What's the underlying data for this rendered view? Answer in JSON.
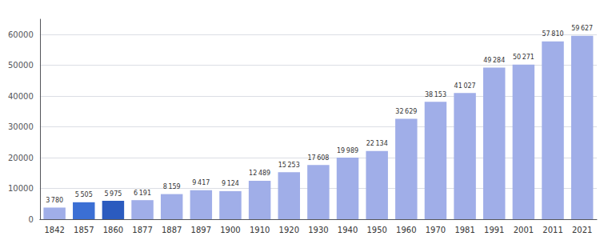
{
  "chart_data": {
    "type": "bar",
    "categories": [
      "1842",
      "1857",
      "1860",
      "1877",
      "1887",
      "1897",
      "1900",
      "1910",
      "1920",
      "1930",
      "1940",
      "1950",
      "1960",
      "1970",
      "1981",
      "1991",
      "2001",
      "2011",
      "2021"
    ],
    "values": [
      3780,
      5505,
      5975,
      6191,
      8159,
      9417,
      9124,
      12489,
      15253,
      17608,
      19989,
      22134,
      32629,
      38153,
      41027,
      49284,
      50271,
      57810,
      59627
    ],
    "value_labels": [
      "3 780",
      "5 505",
      "5 975",
      "6 191",
      "8 159",
      "9 417",
      "9 124",
      "12 489",
      "15 253",
      "17 608",
      "19 989",
      "22 134",
      "32 629",
      "38 153",
      "41 027",
      "49 284",
      "50 271",
      "57 810",
      "59 627"
    ],
    "colors": [
      "#a0aee8",
      "#3b6fd4",
      "#2b5bbf",
      "#a0aee8",
      "#a0aee8",
      "#a0aee8",
      "#a0aee8",
      "#a0aee8",
      "#a0aee8",
      "#a0aee8",
      "#a0aee8",
      "#a0aee8",
      "#a0aee8",
      "#a0aee8",
      "#a0aee8",
      "#a0aee8",
      "#a0aee8",
      "#a0aee8",
      "#a0aee8"
    ],
    "ylim": [
      0,
      65000
    ],
    "yticks": [
      0,
      10000,
      20000,
      30000,
      40000,
      50000,
      60000
    ],
    "grid": true,
    "data_labels": true
  }
}
